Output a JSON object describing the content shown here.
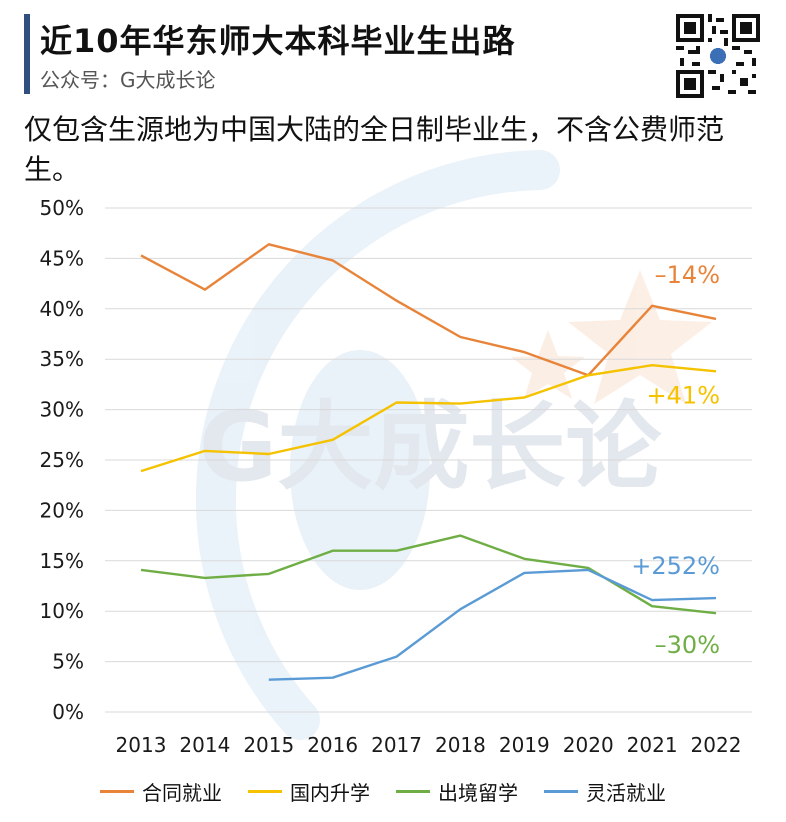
{
  "header": {
    "title": "近10年华东师大本科毕业生出路",
    "subtitle": "公众号：G大成长论",
    "note": "仅包含生源地为中国大陆的全日制毕业生，不含公费师范生。"
  },
  "watermark": {
    "text": "G大成长论"
  },
  "colors": {
    "contract": "#E8843A",
    "further_study": "#F5C200",
    "abroad": "#6FAE45",
    "flexible": "#5B9BD5",
    "gridline": "#d9d9d9",
    "axis_text": "#1a1a1a"
  },
  "chart_data": {
    "type": "line",
    "categories": [
      "2013",
      "2014",
      "2015",
      "2016",
      "2017",
      "2018",
      "2019",
      "2020",
      "2021",
      "2022"
    ],
    "y_ticks": [
      "0%",
      "5%",
      "10%",
      "15%",
      "20%",
      "25%",
      "30%",
      "35%",
      "40%",
      "45%",
      "50%"
    ],
    "ylim": [
      0,
      50
    ],
    "grid": true,
    "legend_position": "bottom",
    "series": [
      {
        "name": "合同就业",
        "color_key": "contract",
        "values": [
          45.3,
          41.9,
          46.4,
          44.8,
          40.8,
          37.2,
          35.7,
          33.4,
          40.3,
          39.0
        ],
        "label": "–14%"
      },
      {
        "name": "国内升学",
        "color_key": "further_study",
        "values": [
          23.9,
          25.9,
          25.6,
          27.0,
          30.7,
          30.6,
          31.2,
          33.4,
          34.4,
          33.8
        ],
        "label": "+41%"
      },
      {
        "name": "出境留学",
        "color_key": "abroad",
        "values": [
          14.1,
          13.3,
          13.7,
          16.0,
          16.0,
          17.5,
          15.2,
          14.3,
          10.5,
          9.8
        ],
        "label": "–30%"
      },
      {
        "name": "灵活就业",
        "color_key": "flexible",
        "values": [
          null,
          null,
          3.2,
          3.4,
          5.5,
          10.2,
          13.8,
          14.1,
          11.1,
          11.3
        ],
        "label": "+252%"
      }
    ]
  }
}
